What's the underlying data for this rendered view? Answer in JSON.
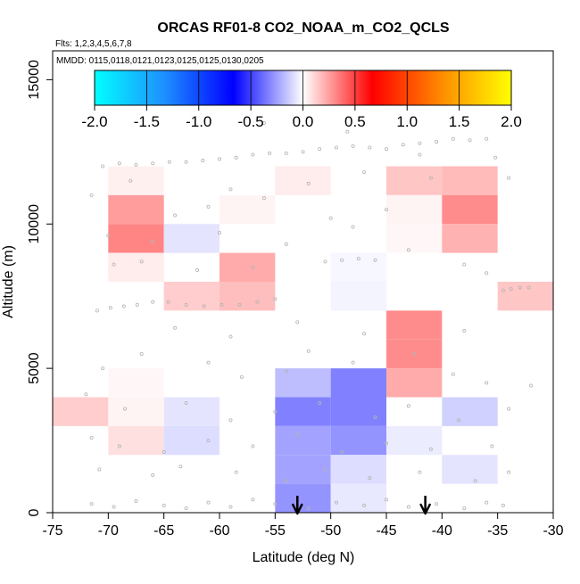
{
  "chart_data": {
    "type": "heatmap",
    "title": "ORCAS RF01-8 CO2_NOAA_m_CO2_QCLS",
    "subtitle_flights": "Flts: 1,2,3,4,5,6,7,8",
    "subtitle_dates": "MMDD: 0115,0118,0121,0123,0125,0125,0130,0205",
    "xlabel": "Latitude (deg N)",
    "ylabel": "Altitude (m)",
    "xlim": [
      -75,
      -30
    ],
    "ylim": [
      0,
      16000
    ],
    "x_ticks": [
      -75,
      -70,
      -65,
      -60,
      -55,
      -50,
      -45,
      -40,
      -35,
      -30
    ],
    "x_tick_labels": [
      "-75",
      "-70",
      "-65",
      "-60",
      "-55",
      "-50",
      "-45",
      "-40",
      "-35",
      "-30"
    ],
    "y_ticks": [
      0,
      5000,
      10000,
      15000
    ],
    "y_tick_labels": [
      "0",
      "5000",
      "10000",
      "15000"
    ],
    "colorbar": {
      "min": -2.0,
      "max": 2.0,
      "ticks": [
        -2.0,
        -1.5,
        -1.0,
        -0.5,
        0.0,
        0.5,
        1.0,
        1.5,
        2.0
      ],
      "tick_labels": [
        "-2.0",
        "-1.5",
        "-1.0",
        "-0.5",
        "0.0",
        "0.5",
        "1.0",
        "1.5",
        "2.0"
      ],
      "stops": [
        "#00ffff",
        "#1e90ff",
        "#0000ff",
        "#ffffff",
        "#ff0000",
        "#ff8c00",
        "#ffff00"
      ]
    },
    "bin_height": 1000,
    "cells": [
      {
        "lat0": -75,
        "lat1": -70,
        "alt": 3000,
        "value": 0.13
      },
      {
        "lat0": -70,
        "lat1": -65,
        "alt": 11000,
        "value": 0.04
      },
      {
        "lat0": -70,
        "lat1": -65,
        "alt": 10000,
        "value": 0.26
      },
      {
        "lat0": -70,
        "lat1": -65,
        "alt": 9000,
        "value": 0.32
      },
      {
        "lat0": -70,
        "lat1": -65,
        "alt": 8000,
        "value": 0.05
      },
      {
        "lat0": -70,
        "lat1": -65,
        "alt": 4000,
        "value": 0.02
      },
      {
        "lat0": -70,
        "lat1": -65,
        "alt": 3000,
        "value": 0.03
      },
      {
        "lat0": -70,
        "lat1": -65,
        "alt": 2000,
        "value": 0.08
      },
      {
        "lat0": -65,
        "lat1": -60,
        "alt": 9000,
        "value": -0.07
      },
      {
        "lat0": -65,
        "lat1": -60,
        "alt": 7000,
        "value": 0.13
      },
      {
        "lat0": -65,
        "lat1": -60,
        "alt": 3000,
        "value": -0.07
      },
      {
        "lat0": -65,
        "lat1": -60,
        "alt": 2000,
        "value": -0.09
      },
      {
        "lat0": -60,
        "lat1": -55,
        "alt": 10000,
        "value": 0.03
      },
      {
        "lat0": -60,
        "lat1": -55,
        "alt": 8000,
        "value": 0.22
      },
      {
        "lat0": -60,
        "lat1": -55,
        "alt": 7000,
        "value": 0.17
      },
      {
        "lat0": -55,
        "lat1": -50,
        "alt": 11000,
        "value": 0.05
      },
      {
        "lat0": -55,
        "lat1": -50,
        "alt": 4000,
        "value": -0.17
      },
      {
        "lat0": -55,
        "lat1": -50,
        "alt": 3000,
        "value": -0.33
      },
      {
        "lat0": -55,
        "lat1": -50,
        "alt": 2000,
        "value": -0.24
      },
      {
        "lat0": -55,
        "lat1": -50,
        "alt": 1000,
        "value": -0.24
      },
      {
        "lat0": -55,
        "lat1": -50,
        "alt": 0,
        "value": -0.28
      },
      {
        "lat0": -50,
        "lat1": -45,
        "alt": 8000,
        "value": -0.02
      },
      {
        "lat0": -50,
        "lat1": -45,
        "alt": 7000,
        "value": -0.03
      },
      {
        "lat0": -50,
        "lat1": -45,
        "alt": 4000,
        "value": -0.33
      },
      {
        "lat0": -50,
        "lat1": -45,
        "alt": 3000,
        "value": -0.33
      },
      {
        "lat0": -50,
        "lat1": -45,
        "alt": 2000,
        "value": -0.28
      },
      {
        "lat0": -50,
        "lat1": -45,
        "alt": 1000,
        "value": -0.09
      },
      {
        "lat0": -50,
        "lat1": -45,
        "alt": 0,
        "value": -0.06
      },
      {
        "lat0": -45,
        "lat1": -40,
        "alt": 11000,
        "value": 0.15
      },
      {
        "lat0": -45,
        "lat1": -40,
        "alt": 10000,
        "value": 0.03
      },
      {
        "lat0": -45,
        "lat1": -40,
        "alt": 9000,
        "value": 0.02
      },
      {
        "lat0": -45,
        "lat1": -40,
        "alt": 6000,
        "value": 0.3
      },
      {
        "lat0": -45,
        "lat1": -40,
        "alt": 5000,
        "value": 0.3
      },
      {
        "lat0": -45,
        "lat1": -40,
        "alt": 4000,
        "value": 0.22
      },
      {
        "lat0": -45,
        "lat1": -40,
        "alt": 2000,
        "value": -0.05
      },
      {
        "lat0": -40,
        "lat1": -35,
        "alt": 11000,
        "value": 0.18
      },
      {
        "lat0": -40,
        "lat1": -35,
        "alt": 10000,
        "value": 0.3
      },
      {
        "lat0": -40,
        "lat1": -35,
        "alt": 9000,
        "value": 0.2
      },
      {
        "lat0": -40,
        "lat1": -35,
        "alt": 3000,
        "value": -0.12
      },
      {
        "lat0": -40,
        "lat1": -35,
        "alt": 1000,
        "value": -0.07
      },
      {
        "lat0": -35,
        "lat1": -30,
        "alt": 7000,
        "value": 0.15
      }
    ],
    "arrows_lat": [
      -53,
      -41.5
    ],
    "sample_points": [
      [
        -70.5,
        12000
      ],
      [
        -69,
        12100
      ],
      [
        -67.5,
        12050
      ],
      [
        -66,
        12100
      ],
      [
        -64.5,
        12150
      ],
      [
        -63,
        12150
      ],
      [
        -61.5,
        12200
      ],
      [
        -60,
        12250
      ],
      [
        -58.5,
        12300
      ],
      [
        -57,
        12400
      ],
      [
        -55.5,
        12450
      ],
      [
        -54,
        12450
      ],
      [
        -52.5,
        12500
      ],
      [
        -51,
        12600
      ],
      [
        -49.5,
        12650
      ],
      [
        -48,
        12700
      ],
      [
        -46.5,
        12650
      ],
      [
        -45,
        12600
      ],
      [
        -43.5,
        12750
      ],
      [
        -42,
        12800
      ],
      [
        -40.5,
        12850
      ],
      [
        -39,
        12950
      ],
      [
        -37.5,
        12900
      ],
      [
        -36,
        12950
      ],
      [
        -71.5,
        11000
      ],
      [
        -68,
        11500
      ],
      [
        -59,
        11200
      ],
      [
        -52,
        11400
      ],
      [
        -47,
        11800
      ],
      [
        -41,
        11600
      ],
      [
        -64,
        10300
      ],
      [
        -61,
        10600
      ],
      [
        -56,
        10900
      ],
      [
        -50,
        10200
      ],
      [
        -45,
        10500
      ],
      [
        -34,
        11600
      ],
      [
        -70,
        9600
      ],
      [
        -66,
        9400
      ],
      [
        -60,
        9700
      ],
      [
        -54,
        9300
      ],
      [
        -48,
        9900
      ],
      [
        -43,
        9100
      ],
      [
        -69.5,
        8600
      ],
      [
        -67,
        8700
      ],
      [
        -62,
        8400
      ],
      [
        -57,
        8500
      ],
      [
        -50.5,
        8700
      ],
      [
        -49,
        8750
      ],
      [
        -47.5,
        8800
      ],
      [
        -46,
        8750
      ],
      [
        -38,
        8600
      ],
      [
        -36,
        8300
      ],
      [
        -71,
        7000
      ],
      [
        -69.8,
        7100
      ],
      [
        -68.6,
        7150
      ],
      [
        -67.4,
        7200
      ],
      [
        -66,
        7300
      ],
      [
        -64.6,
        7300
      ],
      [
        -63,
        7200
      ],
      [
        -61.4,
        7150
      ],
      [
        -59.8,
        7200
      ],
      [
        -58.2,
        7200
      ],
      [
        -56.6,
        7300
      ],
      [
        -55,
        7400
      ],
      [
        -34.5,
        7700
      ],
      [
        -33.8,
        7750
      ],
      [
        -33,
        7800
      ],
      [
        -32.2,
        7800
      ],
      [
        -64,
        6400
      ],
      [
        -59,
        6100
      ],
      [
        -53,
        6600
      ],
      [
        -47,
        6200
      ],
      [
        -38,
        6300
      ],
      [
        -52,
        5600
      ],
      [
        -70.5,
        5000
      ],
      [
        -67,
        5500
      ],
      [
        -61,
        5200
      ],
      [
        -58,
        4700
      ],
      [
        -54,
        4900
      ],
      [
        -48,
        5200
      ],
      [
        -42.5,
        5500
      ],
      [
        -39,
        4800
      ],
      [
        -36,
        4500
      ],
      [
        -32,
        4400
      ],
      [
        -72,
        4100
      ],
      [
        -68.5,
        3600
      ],
      [
        -63,
        3800
      ],
      [
        -59,
        3200
      ],
      [
        -55,
        3500
      ],
      [
        -51,
        3800
      ],
      [
        -46,
        3300
      ],
      [
        -43,
        3700
      ],
      [
        -38.5,
        3200
      ],
      [
        -34,
        3600
      ],
      [
        -71.5,
        2600
      ],
      [
        -69,
        2300
      ],
      [
        -65,
        2100
      ],
      [
        -61,
        2500
      ],
      [
        -57,
        2300
      ],
      [
        -53,
        2700
      ],
      [
        -49,
        2100
      ],
      [
        -45,
        2400
      ],
      [
        -41,
        2200
      ],
      [
        -35.5,
        2300
      ],
      [
        -70.8,
        1500
      ],
      [
        -66,
        1300
      ],
      [
        -63.5,
        1600
      ],
      [
        -58.5,
        1400
      ],
      [
        -54,
        1100
      ],
      [
        -50.5,
        1500
      ],
      [
        -46.5,
        1200
      ],
      [
        -42,
        1400
      ],
      [
        -37,
        1100
      ],
      [
        -34,
        1400
      ],
      [
        -71.5,
        300
      ],
      [
        -69.5,
        200
      ],
      [
        -67.5,
        400
      ],
      [
        -65,
        250
      ],
      [
        -63,
        150
      ],
      [
        -61,
        350
      ],
      [
        -59,
        200
      ],
      [
        -57,
        450
      ],
      [
        -55,
        300
      ],
      [
        -52,
        150
      ],
      [
        -49.5,
        350
      ],
      [
        -47,
        250
      ],
      [
        -45,
        450
      ],
      [
        -43,
        200
      ],
      [
        -40.5,
        300
      ],
      [
        -38,
        150
      ],
      [
        -36,
        350
      ],
      [
        -34.5,
        250
      ],
      [
        -53.5,
        14800
      ],
      [
        -48.5,
        13200
      ],
      [
        -56,
        13500
      ],
      [
        -42,
        12400
      ],
      [
        -35.2,
        12300
      ]
    ]
  }
}
